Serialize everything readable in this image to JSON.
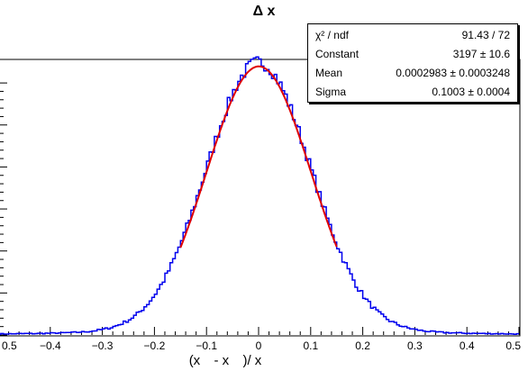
{
  "chart_data": {
    "type": "histogram",
    "title": "Δ x",
    "xlabel": "(x",
    "xlabel_mid": "- x",
    "xlabel_end": ")/ x",
    "xlim": [
      -0.5,
      0.5
    ],
    "ylim": [
      0,
      3280
    ],
    "x_ticks": [
      "0.5",
      "−0.4",
      "−0.3",
      "−0.2",
      "−0.1",
      "0",
      "0.1",
      "0.2",
      "0.3",
      "0.4",
      "0.5"
    ],
    "histogram": {
      "color": "#0000ee",
      "bin_width": 0.005,
      "gaussian": {
        "constant": 3197,
        "mean": 0.0002983,
        "sigma": 0.1003
      },
      "tail_shoulder": 0.06
    },
    "fit": {
      "color": "#e00000",
      "range": [
        -0.15,
        0.15
      ]
    },
    "stats_box": {
      "rows": [
        {
          "label": "χ² / ndf",
          "value": "91.43 / 72"
        },
        {
          "label": "Constant",
          "value": "3197 ± 10.6"
        },
        {
          "label": "Mean",
          "value": "0.0002983 ± 0.0003248"
        },
        {
          "label": "Sigma",
          "value": "0.1003 ± 0.0004"
        }
      ]
    }
  }
}
